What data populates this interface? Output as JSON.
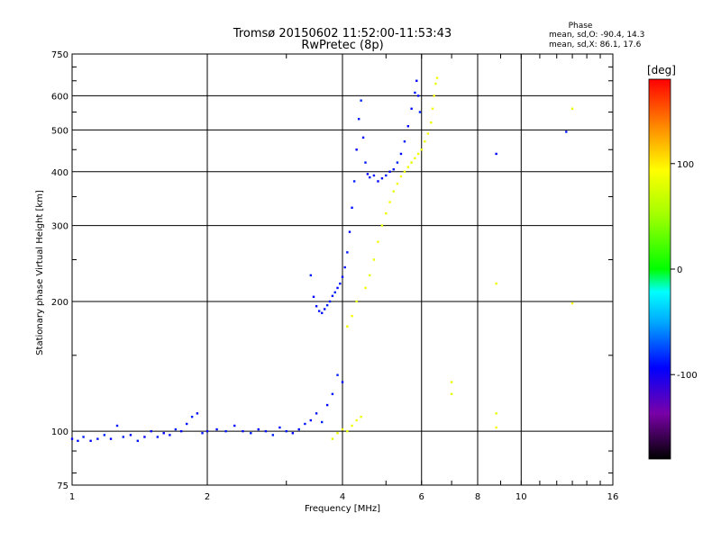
{
  "chart_data": {
    "type": "scatter",
    "title": "Tromsø 20150602 11:52:00-11:53:43",
    "subtitle": "RwPretec (8p)",
    "xlabel": "Frequency [MHz]",
    "ylabel": "Stationary phase Virtual Height [km]",
    "x_scale": "log2",
    "y_scale": "log",
    "xlim": [
      1,
      16
    ],
    "ylim": [
      75,
      750
    ],
    "x_ticks": [
      1,
      2,
      4,
      6,
      8,
      10,
      16
    ],
    "y_ticks": [
      75,
      100,
      200,
      300,
      400,
      500,
      600,
      750
    ],
    "grid": true,
    "info": {
      "title": "Phase",
      "line_o": "mean, sd,O: -90.4, 14.3",
      "line_x": "mean, sd,X: 86.1, 17.6"
    },
    "colorbar": {
      "label": "[deg]",
      "range": [
        -180,
        180
      ],
      "ticks": [
        100,
        0,
        -100
      ]
    },
    "series": [
      {
        "mode": "O",
        "phase_mean": -90.4,
        "points": [
          [
            1.0,
            96
          ],
          [
            1.03,
            95
          ],
          [
            1.06,
            97
          ],
          [
            1.1,
            95
          ],
          [
            1.14,
            96
          ],
          [
            1.18,
            98
          ],
          [
            1.22,
            96
          ],
          [
            1.26,
            103
          ],
          [
            1.3,
            97
          ],
          [
            1.35,
            98
          ],
          [
            1.4,
            95
          ],
          [
            1.45,
            97
          ],
          [
            1.5,
            100
          ],
          [
            1.55,
            97
          ],
          [
            1.6,
            99
          ],
          [
            1.65,
            98
          ],
          [
            1.7,
            101
          ],
          [
            1.75,
            100
          ],
          [
            1.8,
            104
          ],
          [
            1.85,
            108
          ],
          [
            1.9,
            110
          ],
          [
            1.95,
            99
          ],
          [
            2.0,
            100
          ],
          [
            2.1,
            101
          ],
          [
            2.2,
            100
          ],
          [
            2.3,
            103
          ],
          [
            2.4,
            100
          ],
          [
            2.5,
            99
          ],
          [
            2.6,
            101
          ],
          [
            2.7,
            100
          ],
          [
            2.8,
            98
          ],
          [
            2.9,
            102
          ],
          [
            3.0,
            100
          ],
          [
            3.1,
            99
          ],
          [
            3.2,
            101
          ],
          [
            3.3,
            104
          ],
          [
            3.4,
            106
          ],
          [
            3.5,
            110
          ],
          [
            3.6,
            105
          ],
          [
            3.7,
            115
          ],
          [
            3.8,
            122
          ],
          [
            3.9,
            135
          ],
          [
            4.0,
            130
          ],
          [
            3.4,
            230
          ],
          [
            3.45,
            205
          ],
          [
            3.5,
            195
          ],
          [
            3.55,
            190
          ],
          [
            3.6,
            188
          ],
          [
            3.65,
            192
          ],
          [
            3.7,
            196
          ],
          [
            3.75,
            200
          ],
          [
            3.8,
            206
          ],
          [
            3.85,
            210
          ],
          [
            3.9,
            215
          ],
          [
            3.95,
            220
          ],
          [
            4.0,
            228
          ],
          [
            4.05,
            240
          ],
          [
            4.1,
            260
          ],
          [
            4.15,
            290
          ],
          [
            4.2,
            330
          ],
          [
            4.25,
            380
          ],
          [
            4.3,
            450
          ],
          [
            4.35,
            530
          ],
          [
            4.4,
            585
          ],
          [
            4.45,
            480
          ],
          [
            4.5,
            420
          ],
          [
            4.55,
            395
          ],
          [
            4.6,
            388
          ],
          [
            4.7,
            392
          ],
          [
            4.8,
            380
          ],
          [
            4.9,
            386
          ],
          [
            5.0,
            392
          ],
          [
            5.1,
            400
          ],
          [
            5.2,
            405
          ],
          [
            5.3,
            420
          ],
          [
            5.4,
            440
          ],
          [
            5.5,
            470
          ],
          [
            5.6,
            510
          ],
          [
            5.7,
            560
          ],
          [
            5.8,
            610
          ],
          [
            5.85,
            650
          ],
          [
            5.9,
            600
          ],
          [
            5.95,
            550
          ],
          [
            8.8,
            440
          ],
          [
            12.6,
            495
          ]
        ]
      },
      {
        "mode": "X",
        "phase_mean": 86.1,
        "points": [
          [
            3.8,
            96
          ],
          [
            3.9,
            99
          ],
          [
            4.0,
            101
          ],
          [
            4.1,
            100
          ],
          [
            4.2,
            103
          ],
          [
            4.3,
            106
          ],
          [
            4.4,
            108
          ],
          [
            4.1,
            175
          ],
          [
            4.2,
            185
          ],
          [
            4.3,
            200
          ],
          [
            4.5,
            215
          ],
          [
            4.6,
            230
          ],
          [
            4.7,
            250
          ],
          [
            4.8,
            275
          ],
          [
            4.9,
            300
          ],
          [
            5.0,
            320
          ],
          [
            5.1,
            340
          ],
          [
            5.2,
            360
          ],
          [
            5.3,
            375
          ],
          [
            5.4,
            390
          ],
          [
            5.5,
            400
          ],
          [
            5.6,
            410
          ],
          [
            5.7,
            420
          ],
          [
            5.8,
            430
          ],
          [
            5.9,
            440
          ],
          [
            6.0,
            450
          ],
          [
            6.1,
            470
          ],
          [
            6.2,
            490
          ],
          [
            6.3,
            520
          ],
          [
            6.35,
            560
          ],
          [
            6.4,
            600
          ],
          [
            6.45,
            640
          ],
          [
            6.5,
            660
          ],
          [
            7.0,
            122
          ],
          [
            7.0,
            130
          ],
          [
            8.8,
            102
          ],
          [
            8.8,
            110
          ],
          [
            8.8,
            220
          ],
          [
            13.0,
            198
          ],
          [
            13.0,
            560
          ]
        ]
      }
    ]
  }
}
